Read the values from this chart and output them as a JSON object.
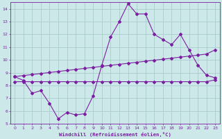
{
  "x": [
    0,
    1,
    2,
    3,
    4,
    5,
    6,
    7,
    8,
    9,
    10,
    11,
    12,
    13,
    14,
    15,
    16,
    17,
    18,
    19,
    20,
    21,
    22,
    23
  ],
  "line1": [
    8.7,
    8.4,
    7.4,
    7.6,
    6.6,
    5.4,
    5.9,
    5.7,
    5.8,
    7.2,
    9.6,
    11.8,
    13.0,
    14.4,
    13.6,
    13.6,
    12.0,
    11.6,
    11.2,
    12.0,
    10.8,
    9.6,
    8.8,
    8.6
  ],
  "line2": [
    8.7,
    8.78,
    8.86,
    8.94,
    9.02,
    9.1,
    9.18,
    9.26,
    9.34,
    9.42,
    9.5,
    9.58,
    9.66,
    9.74,
    9.82,
    9.9,
    9.98,
    10.06,
    10.14,
    10.22,
    10.3,
    10.38,
    10.46,
    10.8
  ],
  "line3": [
    8.3,
    8.3,
    8.3,
    8.3,
    8.3,
    8.3,
    8.3,
    8.3,
    8.3,
    8.3,
    8.3,
    8.3,
    8.3,
    8.3,
    8.3,
    8.3,
    8.3,
    8.3,
    8.3,
    8.3,
    8.3,
    8.3,
    8.3,
    8.45
  ],
  "line_color": "#7b1fa2",
  "bg_color": "#cce8e8",
  "grid_color": "#aacccc",
  "xlabel": "Windchill (Refroidissement éolien,°C)",
  "ylim": [
    5,
    14.5
  ],
  "xlim": [
    -0.5,
    23.5
  ],
  "yticks": [
    5,
    6,
    7,
    8,
    9,
    10,
    11,
    12,
    13,
    14
  ],
  "xticks": [
    0,
    1,
    2,
    3,
    4,
    5,
    6,
    7,
    8,
    9,
    10,
    11,
    12,
    13,
    14,
    15,
    16,
    17,
    18,
    19,
    20,
    21,
    22,
    23
  ],
  "marker": "D",
  "markersize": 2.0,
  "linewidth": 0.8
}
